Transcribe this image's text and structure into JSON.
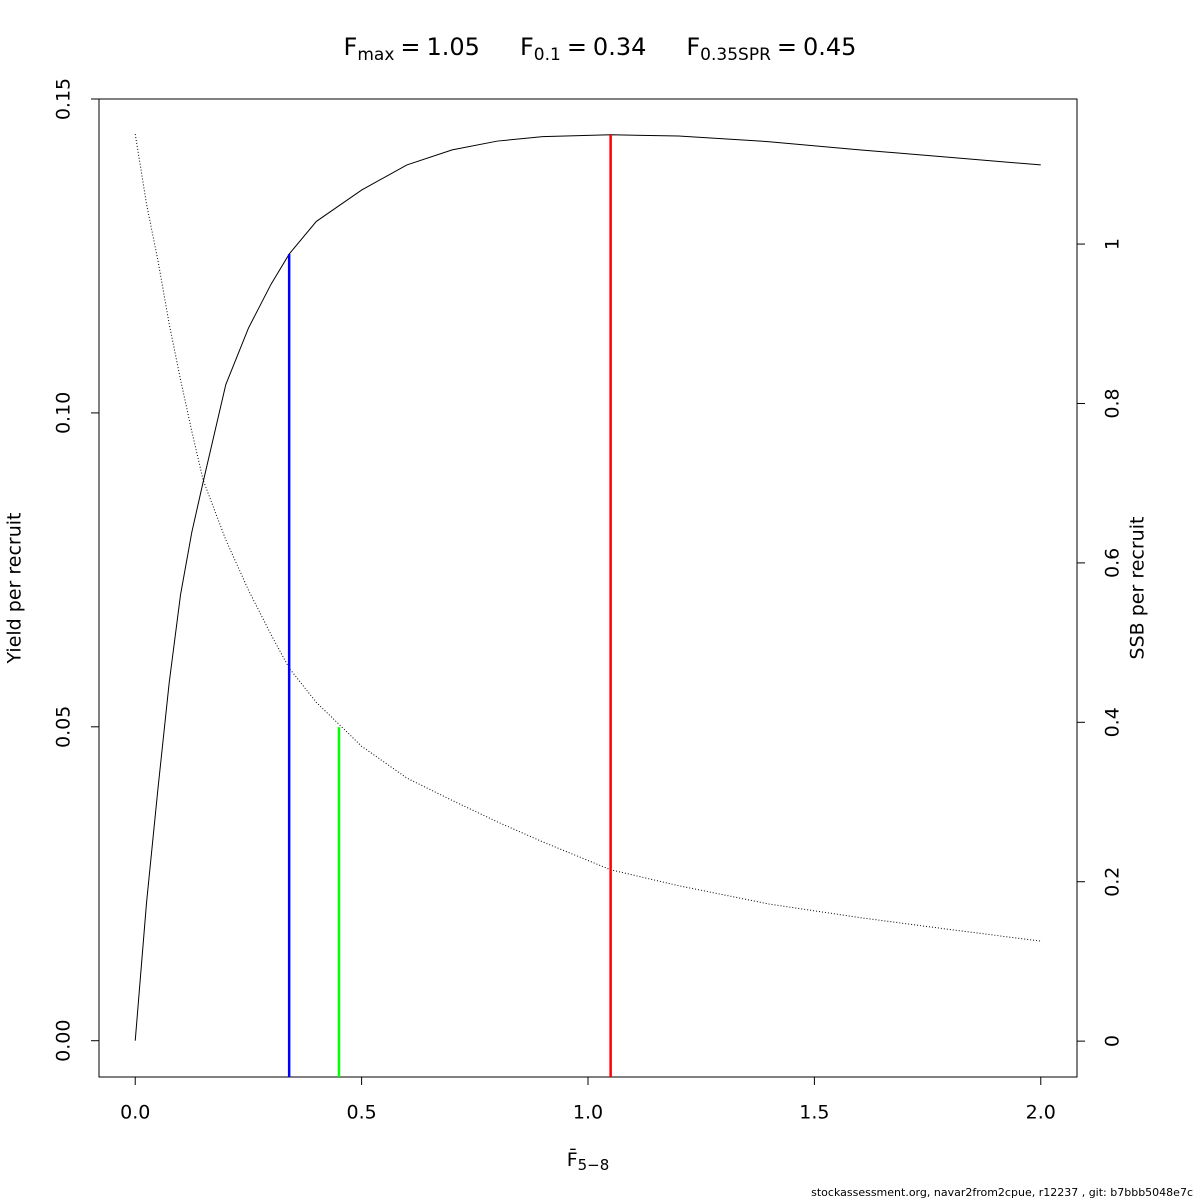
{
  "chart_data": {
    "type": "line",
    "title_parts": [
      {
        "symbol": "F",
        "sub": "max",
        "eq": "=",
        "value": 1.05
      },
      {
        "symbol": "F",
        "sub": "0.1",
        "eq": "=",
        "value": 0.34
      },
      {
        "symbol": "F",
        "sub": "0.35SPR",
        "eq": "=",
        "value": 0.45
      }
    ],
    "xlabel": {
      "symbol": "F̄",
      "sub": "5−8"
    },
    "ylabel": "Yield per recruit",
    "y2label": "SSB per recruit",
    "footer": "stockassessment.org, navar2from2cpue, r12237 , git: b7bbb5048e7c",
    "x": [
      0,
      0.025,
      0.05,
      0.075,
      0.1,
      0.125,
      0.15,
      0.2,
      0.25,
      0.3,
      0.34,
      0.4,
      0.5,
      0.6,
      0.7,
      0.8,
      0.9,
      1.05,
      1.2,
      1.4,
      1.6,
      1.8,
      2.0
    ],
    "series": [
      {
        "color": "#000000",
        "style": "solid",
        "axis": "y",
        "values": [
          0,
          0.022,
          0.04,
          0.057,
          0.071,
          0.081,
          0.089,
          0.1045,
          0.1135,
          0.1205,
          0.1253,
          0.1305,
          0.1355,
          0.1395,
          0.1419,
          0.1433,
          0.144,
          0.1443,
          0.1441,
          0.1432,
          0.1419,
          0.1407,
          0.1395
        ]
      },
      {
        "color": "#000000",
        "style": "dotted",
        "axis": "y2",
        "values": [
          1.138,
          1.05,
          0.98,
          0.9,
          0.83,
          0.765,
          0.704,
          0.629,
          0.566,
          0.51,
          0.468,
          0.425,
          0.37,
          0.33,
          0.302,
          0.275,
          0.25,
          0.215,
          0.195,
          0.172,
          0.155,
          0.14,
          0.1255
        ]
      }
    ],
    "reference_lines": [
      {
        "x": 0.34,
        "y": 0.1253,
        "axis": "y",
        "color": "#0000ff"
      },
      {
        "x": 0.45,
        "y": 0.394,
        "axis": "y2",
        "color": "#00ff00"
      },
      {
        "x": 1.05,
        "y": 0.1443,
        "axis": "y",
        "color": "#ff0000"
      }
    ],
    "xlim": [
      -0.08,
      2.08
    ],
    "ylim": [
      -0.00578,
      0.15
    ],
    "y2lim": [
      -0.045,
      1.182
    ],
    "xticks": [
      {
        "value": 0,
        "label": "0.0"
      },
      0.5,
      {
        "value": 1,
        "label": "1.0"
      },
      1.5,
      {
        "value": 2,
        "label": "2.0"
      }
    ],
    "yticks": [
      {
        "value": 0,
        "label": "0.00"
      },
      0.05,
      {
        "value": 0.1,
        "label": "0.10"
      },
      0.15
    ],
    "y2ticks": [
      0,
      0.2,
      0.4,
      0.6,
      0.8,
      1
    ]
  }
}
